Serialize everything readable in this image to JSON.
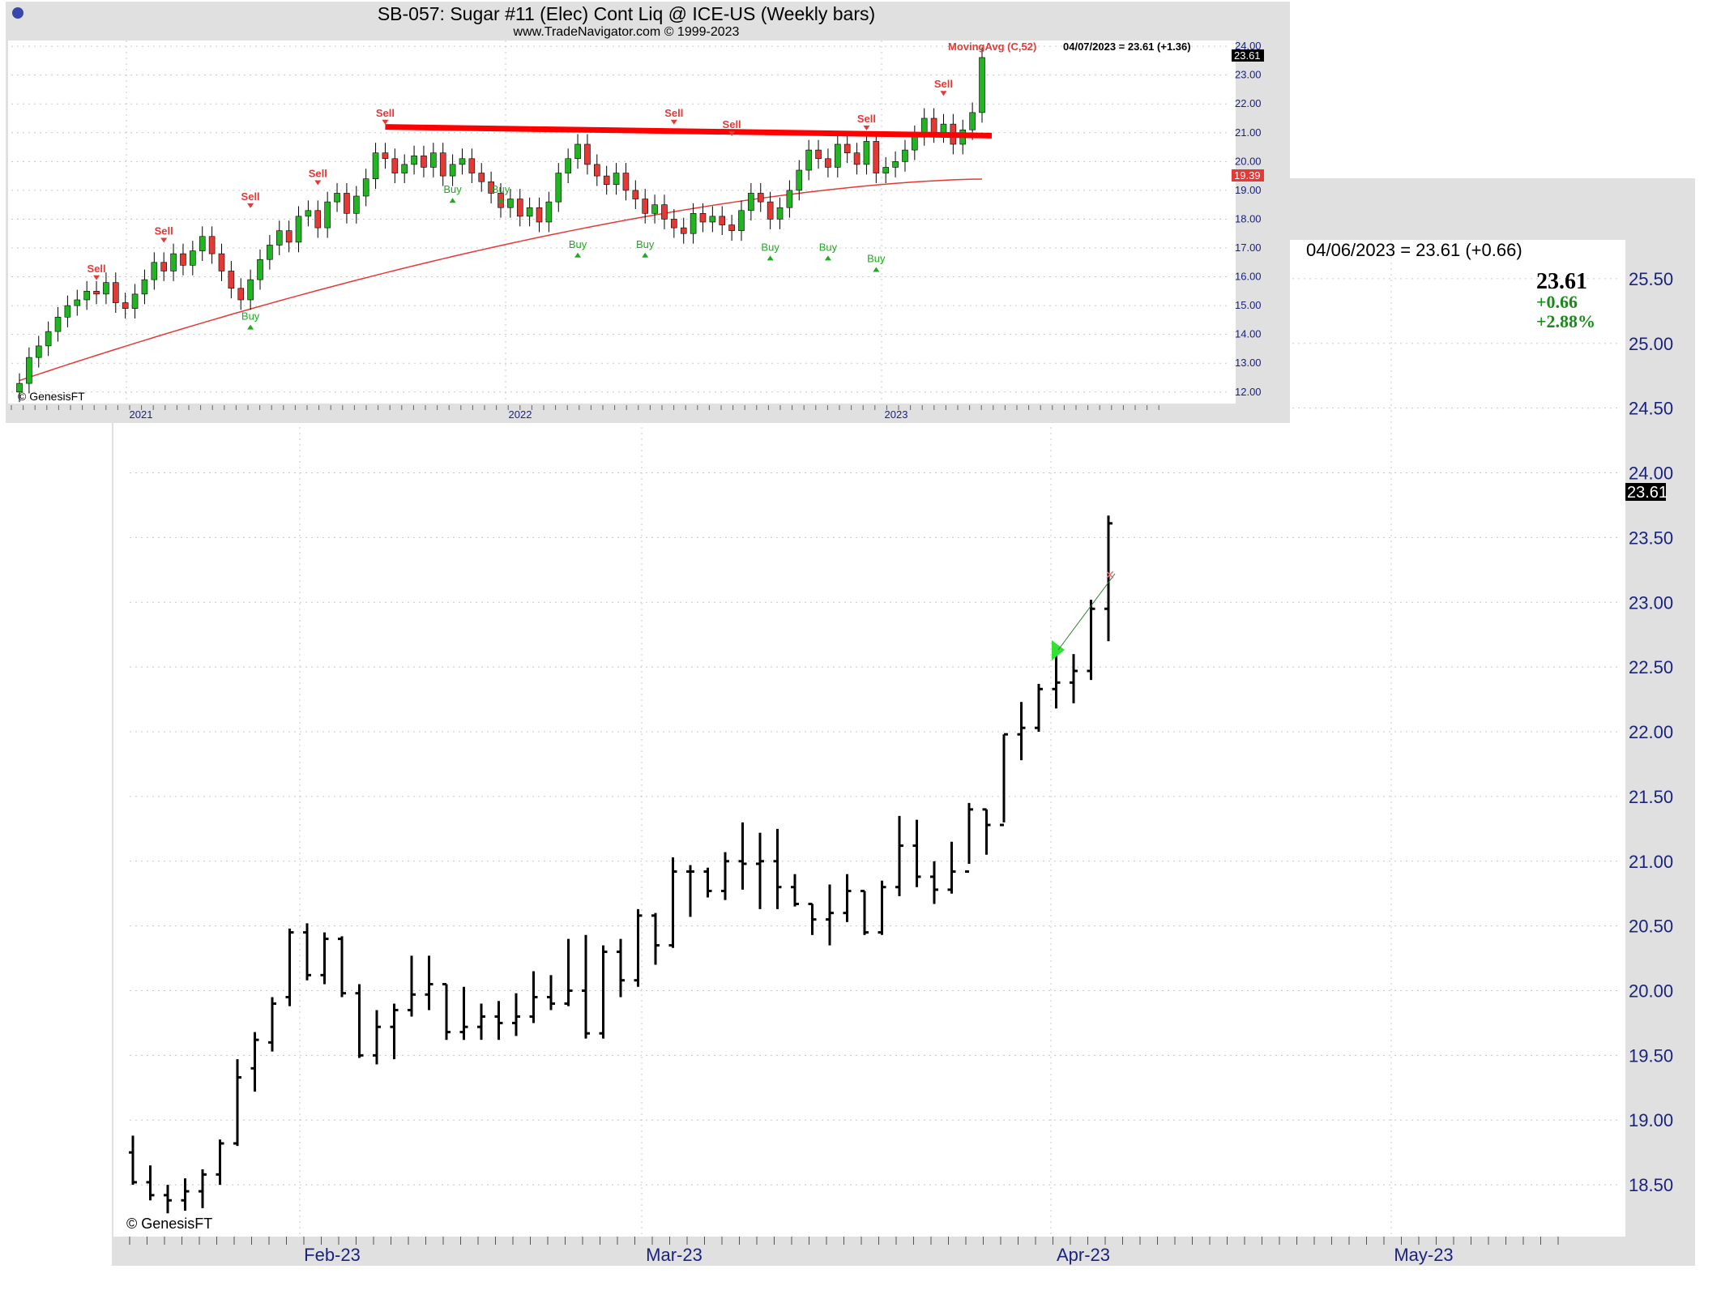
{
  "colors": {
    "panel_bg": "#e0e0e0",
    "plot_bg": "#ffffff",
    "up_candle": "#22b522",
    "down_candle": "#e53935",
    "moving_avg": "#e53935",
    "resistance": "#ff0000",
    "sell": "#e53935",
    "buy": "#1faa1f",
    "axis_text": "#1a237e",
    "bars": "#000000",
    "change_up": "#1a8a1a"
  },
  "top_chart": {
    "title": "SB-057:  Sugar #11 (Elec) Cont Liq @ ICE-US  (Weekly bars)",
    "subtitle": "www.TradeNavigator.com © 1999-2023",
    "indicator_label": "MovingAvg (C,52)",
    "readout": "04/07/2023 = 23.61 (+1.36)",
    "last_price_tag": "23.61",
    "ma_price_tag": "19.39",
    "copyright": "© GenesisFT",
    "y_ticks": [
      "12.00",
      "13.00",
      "14.00",
      "15.00",
      "16.00",
      "17.00",
      "18.00",
      "19.00",
      "20.00",
      "21.00",
      "22.00",
      "23.00",
      "24.00"
    ],
    "x_labels": [
      "2021",
      "2022",
      "2023"
    ],
    "sell_label": "Sell",
    "buy_label": "Buy"
  },
  "bottom_chart": {
    "readout": "04/06/2023 = 23.61 (+0.66)",
    "last_close": "23.61",
    "change": "+0.66",
    "change_pct": "+2.88%",
    "price_tag": "23.61",
    "copyright": "© GenesisFT",
    "y_ticks": [
      "18.50",
      "19.00",
      "19.50",
      "20.00",
      "20.50",
      "21.00",
      "21.50",
      "22.00",
      "22.50",
      "23.00",
      "23.50",
      "24.00",
      "24.50",
      "25.00",
      "25.50"
    ],
    "x_labels": [
      "Feb-23",
      "Mar-23",
      "Apr-23",
      "May-23"
    ]
  },
  "chart_data": [
    {
      "type": "candlestick",
      "title": "SB-057:  Sugar #11 (Elec) Cont Liq @ ICE-US  (Weekly bars)",
      "x_labels": [
        "2021",
        "2022",
        "2023"
      ],
      "ylim": [
        11.6,
        24.2
      ],
      "grid": true,
      "close_approx": [
        12.3,
        13.2,
        13.6,
        14.1,
        14.6,
        15.0,
        15.2,
        15.5,
        15.4,
        15.8,
        15.1,
        14.9,
        15.4,
        15.9,
        16.5,
        16.2,
        16.8,
        16.4,
        16.9,
        17.4,
        16.8,
        16.2,
        15.6,
        15.2,
        15.9,
        16.6,
        17.1,
        17.6,
        17.2,
        18.1,
        18.3,
        17.7,
        18.6,
        18.9,
        18.2,
        18.8,
        19.4,
        20.3,
        20.1,
        19.6,
        19.9,
        20.2,
        19.8,
        20.3,
        19.5,
        19.9,
        20.1,
        19.6,
        19.3,
        18.9,
        18.4,
        18.7,
        18.1,
        18.4,
        17.9,
        18.6,
        19.6,
        20.1,
        20.6,
        19.9,
        19.5,
        19.2,
        19.6,
        19.0,
        18.7,
        18.2,
        18.5,
        18.0,
        17.7,
        17.5,
        18.2,
        17.9,
        18.1,
        17.8,
        17.6,
        18.3,
        18.9,
        18.6,
        18.0,
        18.4,
        19.0,
        19.7,
        20.4,
        20.1,
        19.8,
        20.6,
        20.3,
        19.9,
        20.7,
        19.6,
        19.8,
        20.0,
        20.4,
        20.9,
        21.5,
        21.0,
        21.3,
        20.6,
        21.1,
        21.7,
        23.61
      ],
      "moving_average_52": {
        "start": 12.4,
        "end": 19.39
      },
      "resistance_line": {
        "from": 21.2,
        "to": 20.9
      },
      "signals": [
        {
          "label": "Sell",
          "price": 15.6
        },
        {
          "label": "Sell",
          "price": 16.9
        },
        {
          "label": "Sell",
          "price": 18.1
        },
        {
          "label": "Sell",
          "price": 18.9
        },
        {
          "label": "Buy",
          "price": 14.9
        },
        {
          "label": "Sell",
          "price": 21.0
        },
        {
          "label": "Buy",
          "price": 19.3
        },
        {
          "label": "Buy",
          "price": 19.3
        },
        {
          "label": "Buy",
          "price": 17.4
        },
        {
          "label": "Buy",
          "price": 17.4
        },
        {
          "label": "Sell",
          "price": 21.0
        },
        {
          "label": "Sell",
          "price": 20.6
        },
        {
          "label": "Buy",
          "price": 17.3
        },
        {
          "label": "Buy",
          "price": 17.3
        },
        {
          "label": "Buy",
          "price": 16.9
        },
        {
          "label": "Sell",
          "price": 20.8
        },
        {
          "label": "Sell",
          "price": 22.0
        }
      ]
    },
    {
      "type": "ohlc",
      "x_labels": [
        "Feb-23",
        "Mar-23",
        "Apr-23",
        "May-23"
      ],
      "ylim": [
        18.1,
        25.8
      ],
      "grid": true,
      "bars": [
        {
          "o": 18.75,
          "h": 18.88,
          "l": 18.5,
          "c": 18.52
        },
        {
          "o": 18.52,
          "h": 18.65,
          "l": 18.38,
          "c": 18.42
        },
        {
          "o": 18.42,
          "h": 18.5,
          "l": 18.28,
          "c": 18.38
        },
        {
          "o": 18.38,
          "h": 18.55,
          "l": 18.3,
          "c": 18.45
        },
        {
          "o": 18.45,
          "h": 18.62,
          "l": 18.32,
          "c": 18.58
        },
        {
          "o": 18.58,
          "h": 18.85,
          "l": 18.5,
          "c": 18.82
        },
        {
          "o": 18.82,
          "h": 19.47,
          "l": 18.8,
          "c": 19.33
        },
        {
          "o": 19.4,
          "h": 19.68,
          "l": 19.22,
          "c": 19.62
        },
        {
          "o": 19.6,
          "h": 19.95,
          "l": 19.53,
          "c": 19.9
        },
        {
          "o": 19.95,
          "h": 20.48,
          "l": 19.88,
          "c": 20.45
        },
        {
          "o": 20.45,
          "h": 20.52,
          "l": 20.08,
          "c": 20.12
        },
        {
          "o": 20.12,
          "h": 20.45,
          "l": 20.05,
          "c": 20.4
        },
        {
          "o": 20.4,
          "h": 20.42,
          "l": 19.95,
          "c": 19.98
        },
        {
          "o": 19.98,
          "h": 20.05,
          "l": 19.48,
          "c": 19.5
        },
        {
          "o": 19.5,
          "h": 19.85,
          "l": 19.43,
          "c": 19.72
        },
        {
          "o": 19.72,
          "h": 19.9,
          "l": 19.47,
          "c": 19.85
        },
        {
          "o": 19.85,
          "h": 20.27,
          "l": 19.8,
          "c": 19.97
        },
        {
          "o": 19.97,
          "h": 20.27,
          "l": 19.85,
          "c": 20.05
        },
        {
          "o": 20.05,
          "h": 20.05,
          "l": 19.62,
          "c": 19.68
        },
        {
          "o": 19.68,
          "h": 20.03,
          "l": 19.62,
          "c": 19.72
        },
        {
          "o": 19.72,
          "h": 19.9,
          "l": 19.62,
          "c": 19.8
        },
        {
          "o": 19.8,
          "h": 19.92,
          "l": 19.62,
          "c": 19.75
        },
        {
          "o": 19.75,
          "h": 19.98,
          "l": 19.65,
          "c": 19.8
        },
        {
          "o": 19.8,
          "h": 20.15,
          "l": 19.75,
          "c": 19.95
        },
        {
          "o": 19.95,
          "h": 20.12,
          "l": 19.85,
          "c": 19.9
        },
        {
          "o": 19.9,
          "h": 20.4,
          "l": 19.88,
          "c": 20.0
        },
        {
          "o": 20.0,
          "h": 20.43,
          "l": 19.63,
          "c": 19.67
        },
        {
          "o": 19.67,
          "h": 20.35,
          "l": 19.63,
          "c": 20.3
        },
        {
          "o": 20.3,
          "h": 20.4,
          "l": 19.95,
          "c": 20.08
        },
        {
          "o": 20.08,
          "h": 20.63,
          "l": 20.03,
          "c": 20.58
        },
        {
          "o": 20.58,
          "h": 20.6,
          "l": 20.2,
          "c": 20.35
        },
        {
          "o": 20.35,
          "h": 21.03,
          "l": 20.33,
          "c": 20.92
        },
        {
          "o": 20.92,
          "h": 20.97,
          "l": 20.57,
          "c": 20.92
        },
        {
          "o": 20.92,
          "h": 20.95,
          "l": 20.72,
          "c": 20.77
        },
        {
          "o": 20.77,
          "h": 21.07,
          "l": 20.7,
          "c": 21.0
        },
        {
          "o": 21.0,
          "h": 21.3,
          "l": 20.78,
          "c": 20.98
        },
        {
          "o": 20.98,
          "h": 21.22,
          "l": 20.63,
          "c": 21.0
        },
        {
          "o": 21.0,
          "h": 21.25,
          "l": 20.63,
          "c": 20.8
        },
        {
          "o": 20.8,
          "h": 20.9,
          "l": 20.65,
          "c": 20.67
        },
        {
          "o": 20.67,
          "h": 20.67,
          "l": 20.43,
          "c": 20.55
        },
        {
          "o": 20.55,
          "h": 20.82,
          "l": 20.35,
          "c": 20.6
        },
        {
          "o": 20.6,
          "h": 20.9,
          "l": 20.53,
          "c": 20.77
        },
        {
          "o": 20.77,
          "h": 20.77,
          "l": 20.43,
          "c": 20.45
        },
        {
          "o": 20.45,
          "h": 20.85,
          "l": 20.43,
          "c": 20.8
        },
        {
          "o": 20.8,
          "h": 21.35,
          "l": 20.73,
          "c": 21.12
        },
        {
          "o": 21.12,
          "h": 21.32,
          "l": 20.8,
          "c": 20.88
        },
        {
          "o": 20.88,
          "h": 21.0,
          "l": 20.67,
          "c": 20.78
        },
        {
          "o": 20.78,
          "h": 21.15,
          "l": 20.75,
          "c": 20.92
        },
        {
          "o": 20.92,
          "h": 21.45,
          "l": 20.98,
          "c": 21.4
        },
        {
          "o": 21.4,
          "h": 21.4,
          "l": 21.05,
          "c": 21.28
        },
        {
          "o": 21.28,
          "h": 21.98,
          "l": 21.3,
          "c": 21.98
        },
        {
          "o": 21.98,
          "h": 22.23,
          "l": 21.78,
          "c": 22.03
        },
        {
          "o": 22.03,
          "h": 22.37,
          "l": 22.0,
          "c": 22.33
        },
        {
          "o": 22.33,
          "h": 22.62,
          "l": 22.18,
          "c": 22.38
        },
        {
          "o": 22.38,
          "h": 22.6,
          "l": 22.22,
          "c": 22.47
        },
        {
          "o": 22.47,
          "h": 23.02,
          "l": 22.4,
          "c": 22.95
        },
        {
          "o": 22.95,
          "h": 23.67,
          "l": 22.7,
          "c": 23.61
        }
      ]
    }
  ]
}
